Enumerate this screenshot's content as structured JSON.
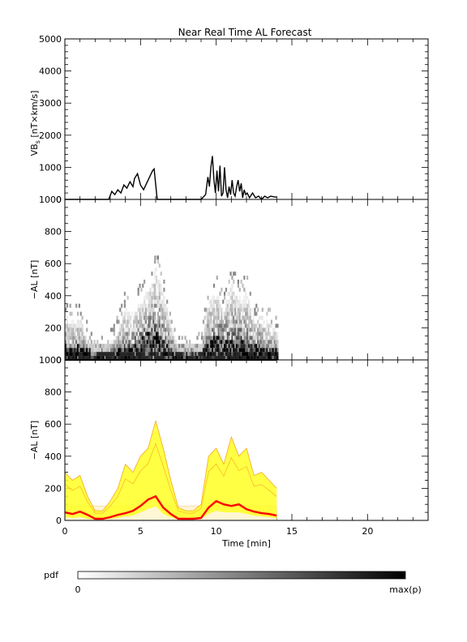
{
  "chart_data": [
    {
      "type": "line",
      "title": "Near Real Time AL Forecast",
      "ylabel": "VB_s [nT×km/s]",
      "ylabel_main": "VB",
      "ylabel_sub": "s",
      "ylabel_rest": " [nT×km/s]",
      "xlim": [
        0,
        24
      ],
      "ylim": [
        0,
        5000
      ],
      "yticks": [
        "0",
        "1000",
        "2000",
        "3000",
        "4000",
        "5000"
      ],
      "ytick_values": [
        0,
        1000,
        2000,
        3000,
        4000,
        5000
      ],
      "series": [
        {
          "x": [
            0,
            1,
            2,
            2.9,
            3.1,
            3.3,
            3.5,
            3.7,
            3.9,
            4.1,
            4.3,
            4.5,
            4.6,
            4.8,
            5.0,
            5.2,
            5.4,
            5.6,
            5.8,
            5.9,
            6.1,
            7.0,
            9.0,
            9.3,
            9.45,
            9.55,
            9.65,
            9.75,
            9.85,
            9.95,
            10.05,
            10.15,
            10.25,
            10.35,
            10.45,
            10.55,
            10.65,
            10.75,
            10.85,
            10.95,
            11.05,
            11.15,
            11.25,
            11.35,
            11.45,
            11.55,
            11.65,
            11.75,
            11.85,
            11.95,
            12.05,
            12.2,
            12.4,
            12.6,
            12.8,
            13.0,
            13.2,
            13.4,
            13.6,
            13.8,
            14.0
          ],
          "y": [
            0,
            0,
            0,
            0,
            250,
            150,
            300,
            200,
            450,
            350,
            550,
            400,
            650,
            800,
            450,
            300,
            500,
            700,
            900,
            950,
            0,
            0,
            0,
            150,
            700,
            400,
            1000,
            1350,
            600,
            200,
            900,
            250,
            1050,
            100,
            200,
            1000,
            300,
            50,
            400,
            150,
            600,
            200,
            100,
            400,
            600,
            250,
            500,
            50,
            300,
            150,
            200,
            50,
            200,
            50,
            100,
            0,
            100,
            50,
            100,
            80,
            70
          ],
          "color": "#000000"
        }
      ]
    },
    {
      "type": "heatmap",
      "ylabel": "−AL [nT]",
      "xlim": [
        0,
        24
      ],
      "ylim": [
        0,
        1000
      ],
      "yticks": [
        "0",
        "200",
        "400",
        "600",
        "800",
        "1000"
      ],
      "ytick_values": [
        0,
        200,
        400,
        600,
        800,
        1000
      ],
      "x_extent": [
        0,
        14
      ],
      "colormap": [
        "#ffffff",
        "#000000"
      ]
    },
    {
      "type": "area",
      "ylabel": "−AL [nT]",
      "xlim": [
        0,
        24
      ],
      "ylim": [
        0,
        1000
      ],
      "yticks": [
        "0",
        "200",
        "400",
        "600",
        "800",
        "1000"
      ],
      "ytick_values": [
        0,
        200,
        400,
        600,
        800,
        1000
      ],
      "xlabel": "Time [min]",
      "xticks": [
        "0",
        "5",
        "10",
        "15",
        "20"
      ],
      "xtick_values": [
        0,
        5,
        10,
        15,
        20
      ],
      "colors": {
        "band": "#ffff22",
        "envelope": "#f5a623",
        "median": "#ff0000"
      },
      "x": [
        0,
        0.5,
        1,
        1.5,
        2,
        2.5,
        3,
        3.5,
        4,
        4.5,
        5,
        5.5,
        6,
        6.5,
        7,
        7.5,
        8,
        8.5,
        9,
        9.5,
        10,
        10.5,
        11,
        11.5,
        12,
        12.5,
        13,
        13.5,
        14
      ],
      "median": [
        50,
        40,
        55,
        35,
        10,
        10,
        20,
        35,
        45,
        60,
        90,
        130,
        150,
        80,
        40,
        10,
        10,
        10,
        15,
        80,
        120,
        100,
        90,
        100,
        70,
        55,
        45,
        40,
        30
      ],
      "upper": [
        300,
        250,
        280,
        150,
        60,
        60,
        120,
        200,
        350,
        300,
        400,
        450,
        620,
        450,
        250,
        80,
        60,
        60,
        100,
        400,
        450,
        350,
        520,
        400,
        450,
        280,
        300,
        250,
        200
      ],
      "lower": [
        20,
        15,
        20,
        10,
        5,
        5,
        10,
        15,
        25,
        30,
        50,
        70,
        90,
        40,
        20,
        5,
        5,
        5,
        10,
        40,
        60,
        50,
        50,
        50,
        40,
        30,
        25,
        20,
        15
      ]
    }
  ],
  "colorbar": {
    "label": "pdf",
    "min_label": "0",
    "max_label": "max(p)"
  }
}
